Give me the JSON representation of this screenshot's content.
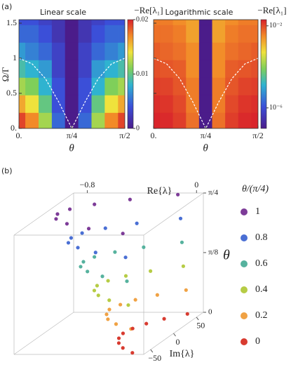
{
  "chart_data": [
    {
      "type": "heatmap",
      "panel": "(a)",
      "title": "Linear scale",
      "colorbar_label": "−Re[λ₁]",
      "xlabel": "θ",
      "ylabel": "Ω/Γ",
      "x": [
        0,
        0.196,
        0.393,
        0.589,
        0.785,
        0.982,
        1.178,
        1.374,
        1.571
      ],
      "y": [
        0.1,
        0.35,
        0.6,
        0.85,
        1.1,
        1.35,
        1.6
      ],
      "values": [
        [
          0.019,
          0.017,
          0.012,
          0.005,
          1e-07,
          0.005,
          0.012,
          0.017,
          0.019
        ],
        [
          0.016,
          0.014,
          0.01,
          0.004,
          1e-07,
          0.004,
          0.01,
          0.014,
          0.016
        ],
        [
          0.012,
          0.011,
          0.008,
          0.004,
          1e-07,
          0.004,
          0.008,
          0.011,
          0.012
        ],
        [
          0.009,
          0.008,
          0.007,
          0.003,
          1e-07,
          0.003,
          0.007,
          0.008,
          0.009
        ],
        [
          0.007,
          0.006,
          0.005,
          0.003,
          1e-07,
          0.003,
          0.005,
          0.006,
          0.007
        ],
        [
          0.005,
          0.005,
          0.004,
          0.002,
          1e-07,
          0.002,
          0.004,
          0.005,
          0.005
        ],
        [
          0.004,
          0.004,
          0.003,
          0.002,
          1e-07,
          0.002,
          0.003,
          0.004,
          0.004
        ]
      ],
      "curve": {
        "x": [
          0,
          0.196,
          0.393,
          0.589,
          0.785,
          0.982,
          1.178,
          1.374,
          1.571
        ],
        "y": [
          1,
          0.92,
          0.71,
          0.38,
          0,
          0.38,
          0.71,
          0.92,
          1
        ],
        "color": "#ffffff"
      },
      "xlim": [
        0,
        1.571
      ],
      "ylim": [
        0,
        1.55
      ],
      "xticks": [
        {
          "value": 0,
          "label": "0."
        },
        {
          "value": 0.785,
          "label": "π/4"
        },
        {
          "value": 1.571,
          "label": "π/2"
        }
      ],
      "yticks": [
        {
          "value": 0,
          "label": "0."
        },
        0.5,
        1,
        1.5
      ],
      "clim": [
        0,
        0.02
      ],
      "cticks": [
        0,
        0.01,
        0.02
      ],
      "log_scale": false
    },
    {
      "type": "heatmap",
      "title": "Logarithmic scale",
      "colorbar_label": "−Re[λ₁]",
      "xlabel": "θ",
      "x": [
        0,
        0.196,
        0.393,
        0.589,
        0.785,
        0.982,
        1.178,
        1.374,
        1.571
      ],
      "y": [
        0.1,
        0.35,
        0.6,
        0.85,
        1.1,
        1.35,
        1.6
      ],
      "values": [
        [
          0.019,
          0.017,
          0.012,
          0.005,
          1e-07,
          0.005,
          0.012,
          0.017,
          0.019
        ],
        [
          0.016,
          0.014,
          0.01,
          0.004,
          1e-07,
          0.004,
          0.01,
          0.014,
          0.016
        ],
        [
          0.012,
          0.011,
          0.008,
          0.004,
          1e-07,
          0.004,
          0.008,
          0.011,
          0.012
        ],
        [
          0.009,
          0.008,
          0.007,
          0.003,
          1e-07,
          0.003,
          0.007,
          0.008,
          0.009
        ],
        [
          0.007,
          0.006,
          0.005,
          0.003,
          1e-07,
          0.003,
          0.005,
          0.006,
          0.007
        ],
        [
          0.005,
          0.005,
          0.004,
          0.002,
          1e-07,
          0.002,
          0.004,
          0.005,
          0.005
        ],
        [
          0.004,
          0.004,
          0.003,
          0.002,
          1e-07,
          0.002,
          0.003,
          0.004,
          0.004
        ]
      ],
      "curve": {
        "x": [
          0,
          0.196,
          0.393,
          0.589,
          0.785,
          0.982,
          1.178,
          1.374,
          1.571
        ],
        "y": [
          1,
          0.92,
          0.71,
          0.38,
          0,
          0.38,
          0.71,
          0.92,
          1
        ],
        "color": "#ffffff"
      },
      "xlim": [
        0,
        1.571
      ],
      "ylim": [
        0,
        1.55
      ],
      "xticks": [
        {
          "value": 0,
          "label": "0."
        },
        {
          "value": 0.785,
          "label": "π/4"
        },
        {
          "value": 1.571,
          "label": "π/2"
        }
      ],
      "clim": [
        1e-07,
        0.02
      ],
      "cticks": [
        {
          "value": 1e-06,
          "label": "10⁻⁶"
        },
        {
          "value": 0.01,
          "label": "10⁻²"
        }
      ],
      "log_scale": true
    },
    {
      "type": "scatter3d",
      "panel": "(b)",
      "xlabel": "Im{λ}",
      "ylabel": "Re{λ}",
      "zlabel": "θ",
      "legend_title": "θ/(π/4)",
      "xlim": [
        -65,
        65
      ],
      "ylim": [
        -0.9,
        0.05
      ],
      "zlim": [
        0,
        0.785
      ],
      "xticks": [
        {
          "value": -50,
          "label": "−50"
        },
        0,
        50
      ],
      "yticks": [
        {
          "value": -0.8,
          "label": "−0.8"
        },
        0
      ],
      "zticks": [
        0,
        {
          "value": 0.393,
          "label": "π/8"
        },
        {
          "value": 0.785,
          "label": "π/4"
        }
      ],
      "series": [
        {
          "name": "1",
          "color": "#7d3c98",
          "z": 0.785,
          "x": [
            -60,
            -45,
            -30,
            -15,
            0,
            15,
            30,
            45,
            60
          ],
          "y": [
            -0.12,
            -0.42,
            -0.63,
            -0.76,
            -0.8,
            -0.76,
            -0.63,
            -0.42,
            -0.12
          ]
        },
        {
          "name": "0.8",
          "color": "#4a6fd4",
          "z": 0.628,
          "x": [
            -60,
            -45,
            -30,
            -15,
            0,
            15,
            30,
            45,
            60
          ],
          "y": [
            -0.1,
            -0.37,
            -0.55,
            -0.67,
            -0.7,
            -0.67,
            -0.55,
            -0.37,
            -0.1
          ]
        },
        {
          "name": "0.6",
          "color": "#56b29e",
          "z": 0.471,
          "x": [
            -60,
            -45,
            -30,
            -15,
            0,
            15,
            30,
            45,
            60
          ],
          "y": [
            -0.09,
            -0.32,
            -0.48,
            -0.58,
            -0.61,
            -0.58,
            -0.48,
            -0.32,
            -0.09
          ]
        },
        {
          "name": "0.4",
          "color": "#b6cc45",
          "z": 0.314,
          "x": [
            -60,
            -45,
            -30,
            -15,
            0,
            15,
            30,
            45,
            60
          ],
          "y": [
            -0.08,
            -0.27,
            -0.4,
            -0.48,
            -0.51,
            -0.48,
            -0.4,
            -0.27,
            -0.08
          ]
        },
        {
          "name": "0.2",
          "color": "#f0a244",
          "z": 0.157,
          "x": [
            -60,
            -45,
            -30,
            -15,
            0,
            15,
            30,
            45,
            60
          ],
          "y": [
            -0.06,
            -0.22,
            -0.33,
            -0.39,
            -0.42,
            -0.39,
            -0.33,
            -0.22,
            -0.06
          ]
        },
        {
          "name": "0",
          "color": "#d83b30",
          "z": 0,
          "x": [
            -60,
            -45,
            -30,
            -15,
            0,
            15,
            30,
            45,
            60
          ],
          "y": [
            -0.05,
            -0.17,
            -0.25,
            -0.3,
            -0.32,
            -0.3,
            -0.25,
            -0.17,
            -0.05
          ]
        }
      ]
    }
  ]
}
